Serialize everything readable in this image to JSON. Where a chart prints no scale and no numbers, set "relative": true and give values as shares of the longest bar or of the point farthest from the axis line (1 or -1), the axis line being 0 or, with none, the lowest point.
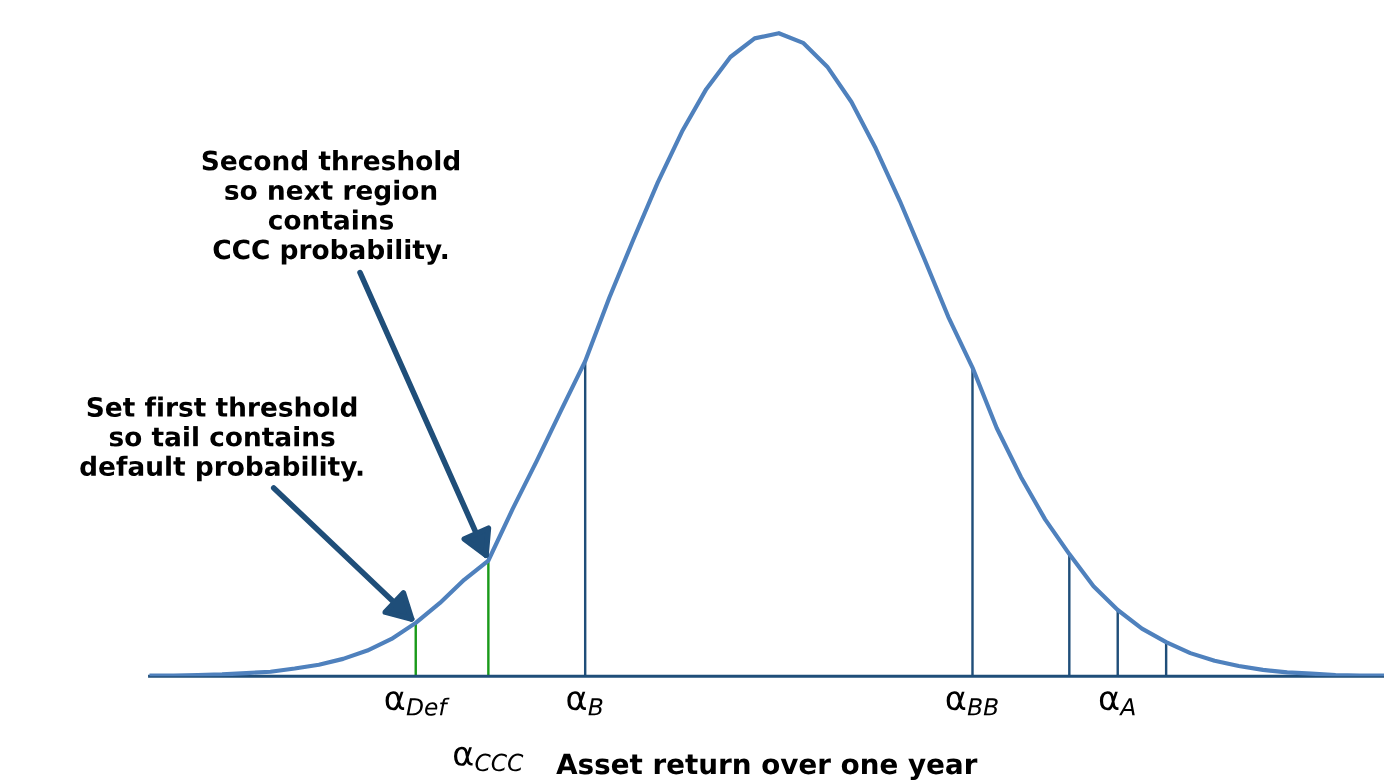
{
  "chart_data": {
    "type": "line",
    "relative": true,
    "xlabel": "Asset return over one year",
    "categories": [
      null,
      null,
      null,
      null,
      null,
      null,
      null,
      null,
      null,
      null,
      null,
      "α$_{Def}$",
      null,
      null,
      "α$_{CCC}$",
      null,
      null,
      null,
      "α$_{B}$",
      null,
      null,
      null,
      null,
      null,
      null,
      null,
      null,
      null,
      null,
      null,
      null,
      null,
      null,
      null,
      "α$_{BB}$",
      null,
      null,
      null,
      null,
      null,
      "α$_{A}$",
      null,
      null,
      null,
      null,
      null,
      null,
      null,
      null,
      null,
      null,
      null
    ],
    "series": [
      {
        "color": "#4f81bd",
        "values": [
          0.001,
          0.001,
          0.002,
          0.003,
          0.005,
          0.007,
          0.012,
          0.018,
          0.027,
          0.04,
          0.058,
          0.083,
          0.114,
          0.15,
          0.18,
          0.26,
          0.335,
          0.413,
          0.49,
          0.589,
          0.68,
          0.768,
          0.847,
          0.913,
          0.963,
          0.992,
          1.0,
          0.985,
          0.948,
          0.893,
          0.821,
          0.739,
          0.65,
          0.559,
          0.48,
          0.386,
          0.31,
          0.244,
          0.19,
          0.14,
          0.103,
          0.074,
          0.053,
          0.036,
          0.024,
          0.016,
          0.01,
          0.006,
          0.004,
          0.002,
          0.001,
          0.001
        ]
      },
      {
        "type": "bar",
        "colors": [
          null,
          null,
          null,
          null,
          null,
          null,
          null,
          null,
          null,
          null,
          null,
          "#1a9a1a",
          null,
          null,
          "#1a9a1a",
          null,
          null,
          null,
          "#1f4e79",
          null,
          null,
          null,
          null,
          null,
          null,
          null,
          null,
          null,
          null,
          null,
          null,
          null,
          null,
          null,
          "#1f4e79",
          null,
          null,
          null,
          "#1f4e79",
          null,
          "#1f4e79",
          null,
          "#1f4e79",
          null,
          null,
          null,
          null,
          null,
          null,
          null,
          null,
          null
        ],
        "values": [
          null,
          null,
          null,
          null,
          null,
          null,
          null,
          null,
          null,
          null,
          null,
          0.083,
          null,
          null,
          0.18,
          null,
          null,
          null,
          0.49,
          null,
          null,
          null,
          null,
          null,
          null,
          null,
          null,
          null,
          null,
          null,
          null,
          null,
          null,
          null,
          0.48,
          null,
          null,
          null,
          0.19,
          null,
          0.103,
          null,
          0.053,
          null,
          null,
          null,
          null,
          null,
          null,
          null,
          null,
          null
        ]
      }
    ],
    "annotations": [
      {
        "text": "Set first threshold\nso tail contains\ndefault probability.",
        "x": "α$_{Def}$",
        "y": 0.083
      },
      {
        "text": "Second threshold\nso next region\ncontains\nCCC probability.",
        "x": "α$_{CCC}$",
        "y": 0.18
      }
    ]
  }
}
